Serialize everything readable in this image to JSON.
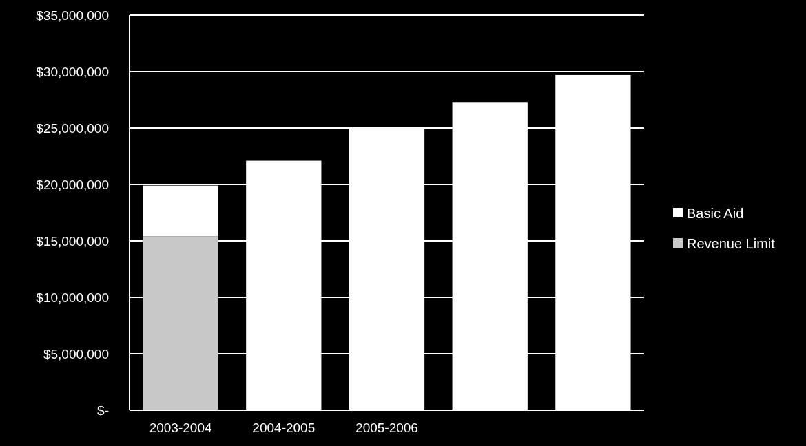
{
  "chart_data": {
    "type": "bar",
    "stacked": true,
    "categories": [
      "2003-2004",
      "2004-2005",
      "2005-2006",
      null,
      null
    ],
    "series": [
      {
        "name": "Revenue Limit",
        "color": "#c8c8c8",
        "values": [
          15400000,
          0,
          0,
          0,
          0
        ]
      },
      {
        "name": "Basic Aid",
        "color": "#ffffff",
        "values": [
          4500000,
          22100000,
          25000000,
          27300000,
          29700000
        ]
      }
    ],
    "ylim": [
      0,
      35000000
    ],
    "yticks": [
      {
        "value": 0,
        "label": "$-"
      },
      {
        "value": 5000000,
        "label": "$5,000,000"
      },
      {
        "value": 10000000,
        "label": "$10,000,000"
      },
      {
        "value": 15000000,
        "label": "$15,000,000"
      },
      {
        "value": 20000000,
        "label": "$20,000,000"
      },
      {
        "value": 25000000,
        "label": "$25,000,000"
      },
      {
        "value": 30000000,
        "label": "$30,000,000"
      },
      {
        "value": 35000000,
        "label": "$35,000,000"
      }
    ],
    "grid": "y",
    "legend": "right"
  }
}
